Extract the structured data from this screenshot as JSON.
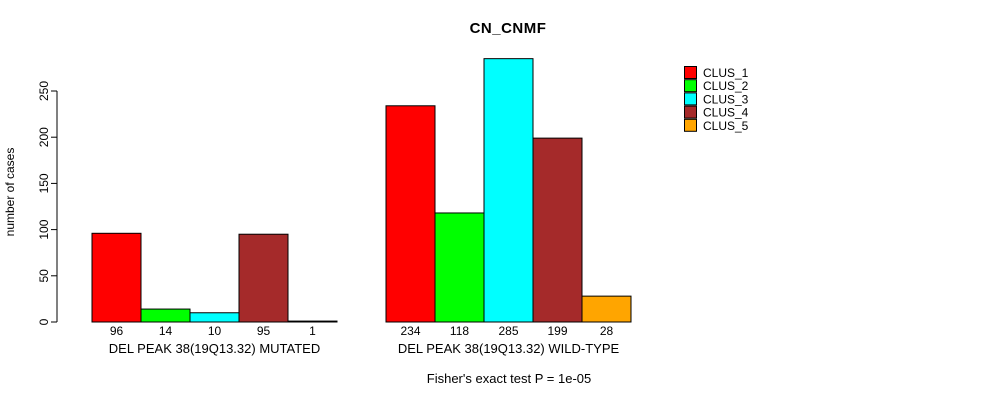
{
  "title": "CN_CNMF",
  "footer": "Fisher's exact test P = 1e-05",
  "chart_data": {
    "type": "bar",
    "title": "CN_CNMF",
    "xlabel": "",
    "ylabel": "number of cases",
    "ylim": [
      0,
      290
    ],
    "yticks": [
      0,
      50,
      100,
      150,
      200,
      250
    ],
    "grid": false,
    "legend_position": "top-right",
    "series_names": [
      "CLUS_1",
      "CLUS_2",
      "CLUS_3",
      "CLUS_4",
      "CLUS_5"
    ],
    "series_colors": [
      "#FF0000",
      "#00FF00",
      "#00FFFF",
      "#A52A2A",
      "#FFA500"
    ],
    "groups": [
      {
        "label": "DEL PEAK 38(19Q13.32) MUTATED",
        "values": [
          96,
          14,
          10,
          95,
          1
        ]
      },
      {
        "label": "DEL PEAK 38(19Q13.32) WILD-TYPE",
        "values": [
          234,
          118,
          285,
          199,
          28
        ]
      }
    ],
    "annotation": "Fisher's exact test P = 1e-05"
  },
  "legend": {
    "items": [
      {
        "label": "CLUS_1",
        "color": "#FF0000"
      },
      {
        "label": "CLUS_2",
        "color": "#00FF00"
      },
      {
        "label": "CLUS_3",
        "color": "#00FFFF"
      },
      {
        "label": "CLUS_4",
        "color": "#A52A2A"
      },
      {
        "label": "CLUS_5",
        "color": "#FFA500"
      }
    ]
  }
}
